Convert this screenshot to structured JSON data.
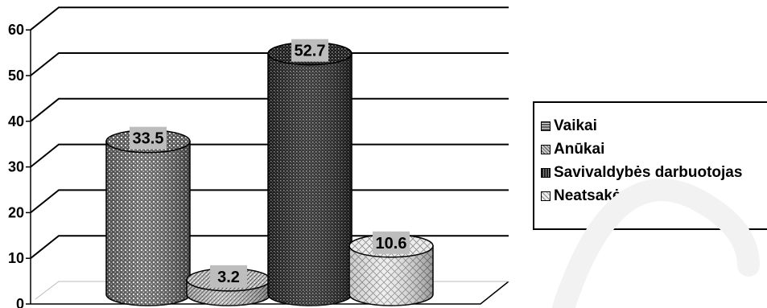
{
  "chart_data": {
    "type": "bar",
    "style": "3d-cylinder",
    "categories": [
      "Vaikai",
      "Anūkai",
      "Savivaldybės darbuotojas",
      "Neatsakė"
    ],
    "series": [
      {
        "values": [
          33.5,
          3.2,
          52.7,
          10.6
        ]
      }
    ],
    "data_labels": [
      "33.5",
      "3.2",
      "52.7",
      "10.6"
    ],
    "ylim": [
      0,
      60
    ],
    "yticks": [
      0,
      10,
      20,
      30,
      40,
      50,
      60
    ],
    "ytick_labels": [
      "0",
      "10",
      "20",
      "30",
      "40",
      "50",
      "60"
    ],
    "grid": true,
    "legend_position": "right",
    "colors": [
      "#555555",
      "#8a8a8a",
      "#222222",
      "#dcdcdc"
    ]
  }
}
